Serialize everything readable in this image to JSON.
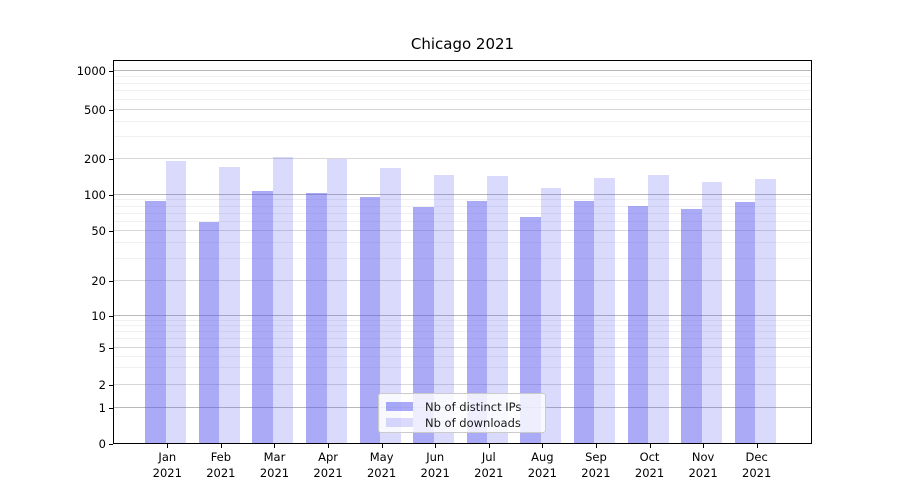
{
  "title": "Chicago 2021",
  "chart_data": {
    "type": "bar",
    "title": "Chicago 2021",
    "categories": [
      "Jan 2021",
      "Feb 2021",
      "Mar 2021",
      "Apr 2021",
      "May 2021",
      "Jun 2021",
      "Jul 2021",
      "Aug 2021",
      "Sep 2021",
      "Oct 2021",
      "Nov 2021",
      "Dec 2021"
    ],
    "series": [
      {
        "name": "Nb of distinct IPs",
        "color": "#5555f0",
        "alpha": 0.5,
        "values": [
          88,
          58,
          106,
          102,
          95,
          78,
          88,
          64,
          87,
          79,
          75,
          86
        ]
      },
      {
        "name": "Nb of downloads",
        "color": "#5555f0",
        "alpha": 0.22,
        "values": [
          188,
          168,
          201,
          195,
          165,
          143,
          142,
          112,
          136,
          143,
          126,
          132
        ]
      }
    ],
    "xlabel": "",
    "ylabel": "",
    "yscale": "symlog",
    "yticks": [
      0,
      1,
      2,
      5,
      10,
      20,
      50,
      100,
      200,
      500,
      1000
    ],
    "ylim": [
      0,
      1280
    ],
    "grid": "both",
    "legend_position": "lower center"
  },
  "colors": {
    "bar_distinct_ips": "rgba(85,85,240,0.5)",
    "bar_downloads": "rgba(85,85,240,0.22)",
    "grid_major": "#b8b8b8",
    "grid_mid": "#d8d8d8",
    "grid_minor": "#f0f0f0",
    "spine": "#000000",
    "background": "#ffffff"
  }
}
